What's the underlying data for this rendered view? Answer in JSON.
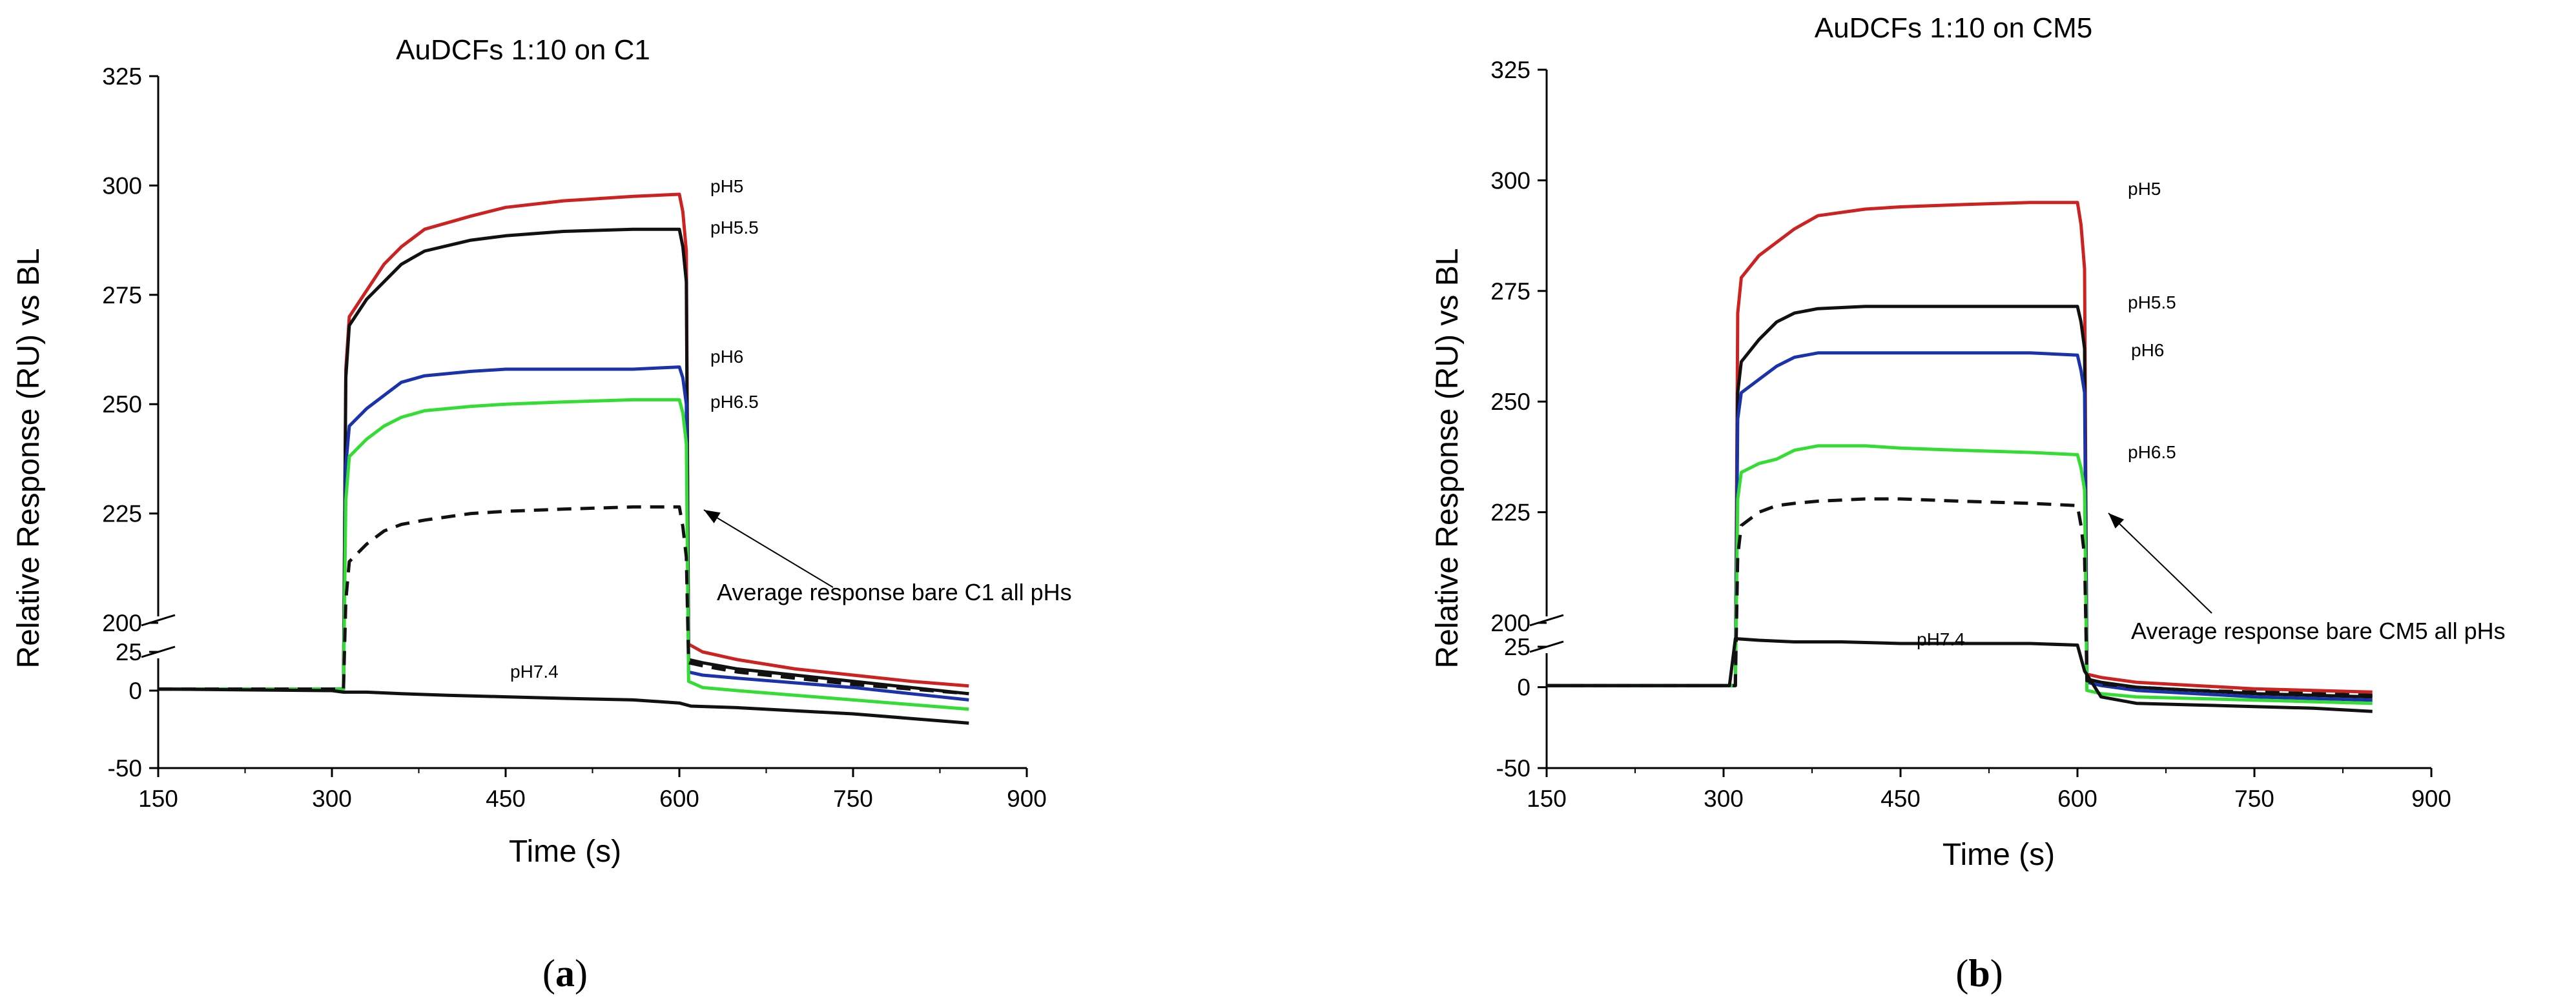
{
  "chart_data": [
    {
      "type": "line",
      "panel": "a",
      "title": "AuDCFs 1:10 on C1",
      "xlabel": "Time (s)",
      "ylabel": "Relative Response (RU) vs BL",
      "xlim": [
        150,
        900
      ],
      "xticks": [
        "150",
        "300",
        "450",
        "600",
        "750",
        "900"
      ],
      "ylim_upper": [
        200,
        325
      ],
      "yticks_upper": [
        "200",
        "225",
        "250",
        "275",
        "300",
        "325"
      ],
      "ylim_lower": [
        -50,
        25
      ],
      "yticks_lower": [
        "-50",
        "0",
        "25"
      ],
      "series": [
        {
          "name": "pH5",
          "color": "#cc2222",
          "dash": false,
          "axis": "upper",
          "x": [
            150,
            310,
            312,
            315,
            330,
            345,
            360,
            380,
            420,
            450,
            500,
            560,
            600,
            603,
            606
          ],
          "y": [
            1,
            1,
            258,
            270,
            276,
            282,
            286,
            290,
            293,
            295,
            296.5,
            297.5,
            298,
            294,
            285
          ],
          "tail_x": [
            608,
            620,
            650,
            700,
            750,
            800,
            850
          ],
          "tail_y": [
            30,
            25,
            20,
            14,
            10,
            6,
            3
          ]
        },
        {
          "name": "pH5.5",
          "color": "#111111",
          "dash": false,
          "axis": "upper",
          "x": [
            150,
            310,
            312,
            315,
            330,
            345,
            360,
            380,
            420,
            450,
            500,
            560,
            600,
            603,
            606
          ],
          "y": [
            1,
            1,
            256,
            268,
            274,
            278,
            282,
            285,
            287.5,
            288.5,
            289.5,
            290,
            290,
            286,
            278
          ],
          "tail_x": [
            608,
            620,
            650,
            700,
            750,
            800,
            850
          ],
          "tail_y": [
            20,
            18,
            14,
            10,
            6,
            2,
            -2
          ]
        },
        {
          "name": "pH6",
          "color": "#1a33aa",
          "dash": false,
          "axis": "upper",
          "x": [
            150,
            310,
            312,
            315,
            330,
            345,
            360,
            380,
            420,
            450,
            500,
            560,
            600,
            603,
            606
          ],
          "y": [
            1,
            1,
            236,
            245,
            249,
            252,
            255,
            256.5,
            257.5,
            258,
            258,
            258,
            258.5,
            256,
            250
          ],
          "tail_x": [
            608,
            620,
            650,
            700,
            750,
            800,
            850
          ],
          "tail_y": [
            12,
            10,
            8,
            5,
            2,
            -2,
            -6
          ]
        },
        {
          "name": "pH6.5",
          "color": "#33dd33",
          "dash": false,
          "axis": "upper",
          "x": [
            150,
            310,
            312,
            315,
            330,
            345,
            360,
            380,
            420,
            450,
            500,
            560,
            600,
            603,
            606
          ],
          "y": [
            1,
            1,
            228,
            238,
            242,
            245,
            247,
            248.5,
            249.5,
            250,
            250.5,
            251,
            251,
            248,
            241
          ],
          "tail_x": [
            608,
            620,
            650,
            700,
            750,
            800,
            850
          ],
          "tail_y": [
            6,
            2,
            0,
            -3,
            -6,
            -9,
            -12
          ]
        },
        {
          "name": "Average response bare C1 all pHs",
          "color": "#111111",
          "dash": true,
          "axis": "upper",
          "x": [
            150,
            310,
            312,
            315,
            330,
            345,
            360,
            380,
            420,
            450,
            500,
            560,
            600,
            603,
            606
          ],
          "y": [
            1,
            1,
            205,
            214,
            218,
            221,
            222.5,
            223.5,
            225,
            225.5,
            226,
            226.5,
            226.5,
            222,
            215
          ],
          "tail_x": [
            608,
            620,
            650,
            700,
            750,
            800,
            850
          ],
          "tail_y": [
            18,
            16,
            12,
            8,
            4,
            1,
            -2
          ]
        },
        {
          "name": "pH7.4",
          "color": "#111111",
          "dash": false,
          "axis": "lower",
          "x": [
            150,
            300,
            310,
            330,
            360,
            400,
            450,
            500,
            560,
            600,
            610,
            650,
            700,
            750,
            800,
            850
          ],
          "y": [
            1,
            0,
            -1,
            -1,
            -2,
            -3,
            -4,
            -5,
            -6,
            -8,
            -10,
            -11,
            -13,
            -15,
            -18,
            -21
          ]
        }
      ],
      "series_labels": [
        "pH5",
        "pH5.5",
        "pH6",
        "pH6.5",
        "pH7.4"
      ],
      "annotation": "Average response bare C1 all pHs"
    },
    {
      "type": "line",
      "panel": "b",
      "title": "AuDCFs 1:10 on CM5",
      "xlabel": "Time (s)",
      "ylabel": "Relative Response (RU) vs BL",
      "xlim": [
        150,
        900
      ],
      "xticks": [
        "150",
        "300",
        "450",
        "600",
        "750",
        "900"
      ],
      "ylim_upper": [
        200,
        325
      ],
      "yticks_upper": [
        "200",
        "225",
        "250",
        "275",
        "300",
        "325"
      ],
      "ylim_lower": [
        -50,
        25
      ],
      "yticks_lower": [
        "-50",
        "0",
        "25"
      ],
      "series": [
        {
          "name": "pH5",
          "color": "#cc2222",
          "dash": false,
          "axis": "upper",
          "x": [
            150,
            310,
            312,
            315,
            330,
            345,
            360,
            380,
            420,
            450,
            500,
            560,
            600,
            603,
            606
          ],
          "y": [
            1,
            1,
            270,
            278,
            283,
            286,
            289,
            292,
            293.5,
            294,
            294.5,
            295,
            295,
            290,
            280
          ],
          "tail_x": [
            608,
            620,
            650,
            700,
            750,
            800,
            850
          ],
          "tail_y": [
            8,
            6,
            3,
            1,
            -1,
            -2,
            -3
          ]
        },
        {
          "name": "pH5.5",
          "color": "#111111",
          "dash": false,
          "axis": "upper",
          "x": [
            150,
            310,
            312,
            315,
            330,
            345,
            360,
            380,
            420,
            450,
            500,
            560,
            600,
            603,
            606
          ],
          "y": [
            1,
            1,
            252,
            259,
            264,
            268,
            270,
            271,
            271.5,
            271.5,
            271.5,
            271.5,
            271.5,
            268,
            262
          ],
          "tail_x": [
            608,
            620,
            650,
            700,
            750,
            800,
            850
          ],
          "tail_y": [
            5,
            3,
            0,
            -2,
            -4,
            -5,
            -6
          ]
        },
        {
          "name": "pH6",
          "color": "#1a33aa",
          "dash": false,
          "axis": "upper",
          "x": [
            150,
            310,
            312,
            315,
            330,
            345,
            360,
            380,
            420,
            450,
            500,
            560,
            600,
            603,
            606
          ],
          "y": [
            1,
            1,
            246,
            252,
            255,
            258,
            260,
            261,
            261,
            261,
            261,
            261,
            260.5,
            257,
            252
          ],
          "tail_x": [
            608,
            620,
            650,
            700,
            750,
            800,
            850
          ],
          "tail_y": [
            3,
            1,
            -2,
            -4,
            -6,
            -7,
            -8
          ]
        },
        {
          "name": "pH6.5",
          "color": "#33dd33",
          "dash": false,
          "axis": "upper",
          "x": [
            150,
            310,
            312,
            315,
            330,
            345,
            360,
            380,
            420,
            450,
            500,
            560,
            600,
            603,
            606
          ],
          "y": [
            1,
            1,
            228,
            234,
            236,
            237,
            239,
            240,
            240,
            239.5,
            239,
            238.5,
            238,
            235,
            230
          ],
          "tail_x": [
            608,
            620,
            650,
            700,
            750,
            800,
            850
          ],
          "tail_y": [
            -2,
            -4,
            -6,
            -7,
            -8,
            -9,
            -10
          ]
        },
        {
          "name": "Average response bare CM5 all pHs",
          "color": "#111111",
          "dash": true,
          "axis": "upper",
          "x": [
            150,
            310,
            312,
            315,
            330,
            345,
            360,
            380,
            420,
            450,
            500,
            560,
            600,
            603,
            606
          ],
          "y": [
            1,
            1,
            215,
            222,
            225,
            226.5,
            227,
            227.5,
            228,
            228,
            227.5,
            227,
            226.5,
            222,
            215
          ],
          "tail_x": [
            608,
            620,
            650,
            700,
            750,
            800,
            850
          ],
          "tail_y": [
            4,
            2,
            0,
            -2,
            -3,
            -4,
            -5
          ]
        },
        {
          "name": "pH7.4",
          "color": "#111111",
          "dash": false,
          "axis": "lower",
          "x": [
            150,
            305,
            310,
            330,
            360,
            400,
            450,
            500,
            560,
            600,
            606,
            620,
            650,
            700,
            750,
            800,
            850
          ],
          "y": [
            1,
            1,
            30,
            29,
            28,
            28,
            27,
            27,
            27,
            26,
            10,
            -6,
            -10,
            -11,
            -12,
            -13,
            -15
          ]
        }
      ],
      "series_labels": [
        "pH5",
        "pH5.5",
        "pH6",
        "pH6.5",
        "pH7.4"
      ],
      "annotation": "Average response bare CM5 all pHs"
    }
  ],
  "panel_labels": {
    "a": "(a)",
    "b": "(b)"
  }
}
